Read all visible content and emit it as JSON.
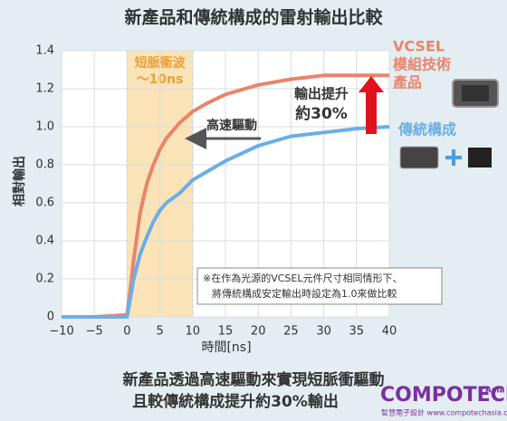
{
  "chart_data": {
    "type": "line",
    "title": "新產品和傳統構成的雷射輸出比較",
    "x_label": "時間[ns]",
    "y_label": "相對輸出",
    "x": [
      -10,
      -5,
      0,
      0.5,
      1,
      2,
      3,
      4,
      5,
      6,
      8,
      10,
      12,
      15,
      20,
      25,
      30,
      35,
      40
    ],
    "series": [
      {
        "name": "VCSEL模組技術產品",
        "name_lines": [
          "VCSEL",
          "模組技術",
          "產品"
        ],
        "color": "#e9846b",
        "values": [
          0,
          0,
          0.01,
          0.15,
          0.3,
          0.55,
          0.7,
          0.8,
          0.88,
          0.94,
          1.02,
          1.08,
          1.12,
          1.17,
          1.22,
          1.25,
          1.27,
          1.27,
          1.27
        ]
      },
      {
        "name": "傳統構成",
        "color": "#6aaee6",
        "values": [
          0,
          0,
          0,
          0.1,
          0.2,
          0.33,
          0.42,
          0.5,
          0.56,
          0.6,
          0.65,
          0.72,
          0.76,
          0.82,
          0.9,
          0.95,
          0.97,
          0.99,
          1.0
        ]
      }
    ],
    "xlim": [
      -10,
      40
    ],
    "xticks": [
      {
        "value": -10,
        "label": "−10"
      },
      {
        "value": -5,
        "label": "−5"
      },
      0,
      5,
      10,
      15,
      20,
      25,
      30,
      35,
      40
    ],
    "ylim": [
      0,
      1.4
    ],
    "yticks": [
      0,
      0.2,
      0.4,
      0.6,
      0.8,
      {
        "value": 1,
        "label": "1.0"
      },
      1.2,
      1.4
    ],
    "grid": true,
    "highlight": {
      "x": [
        0,
        10
      ],
      "label_lines": [
        "短脈衝波",
        "～10ns"
      ],
      "color": "#fbe3b8"
    },
    "annotations": {
      "drive": "高速驅動",
      "gain_lines": [
        "輸出提升",
        "約30%"
      ],
      "note_lines": [
        "※在作為光源的VCSEL元件尺寸相同情形下、",
        "將傳統構成安定輸出時設定為1.0來做比較"
      ]
    },
    "footer_lines": [
      "新產品透過高速驅動來實現短脈衝驅動",
      "且較傳統構成提升約30%輸出"
    ],
    "logo": {
      "name": "COMPOTECH",
      "suffix": "Asia",
      "tagline": "智慧電子設計 www.compotechasia.com"
    }
  }
}
